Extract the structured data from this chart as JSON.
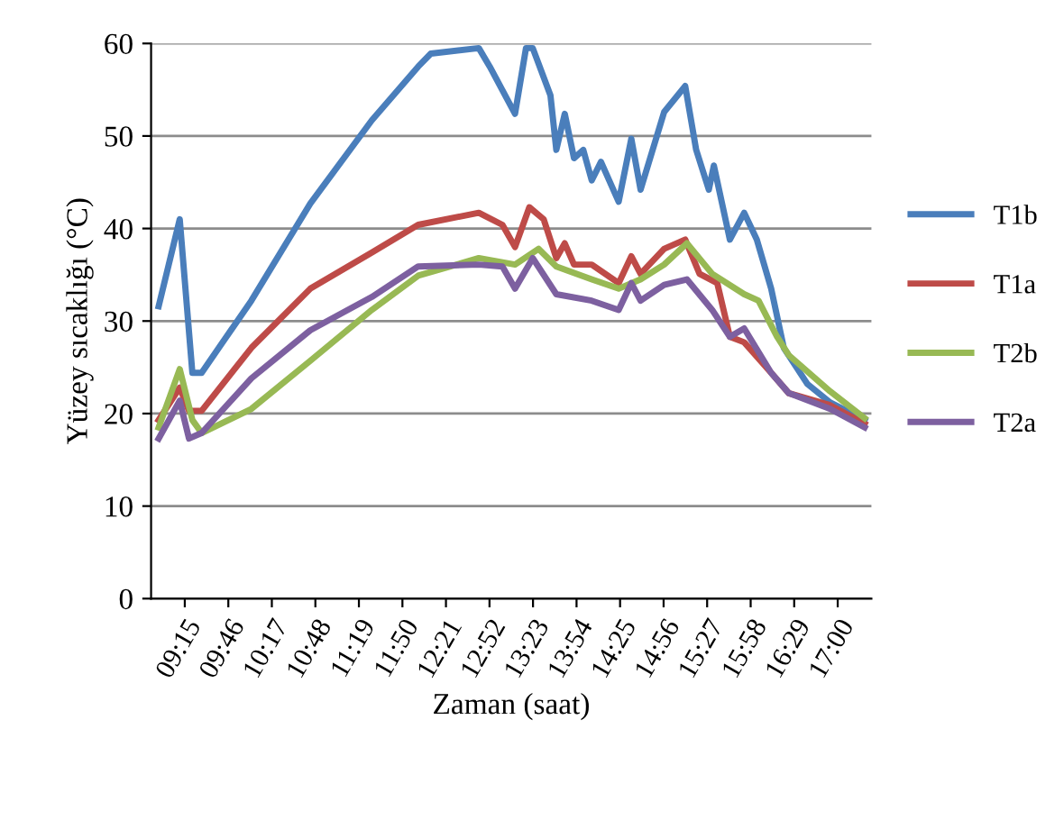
{
  "chart_data": {
    "type": "line",
    "xlabel": "Zaman (saat)",
    "ylabel": "Yüzey sıcaklığı (°C)",
    "xlim": [
      8.85,
      17.4
    ],
    "ylim": [
      0,
      60
    ],
    "yticks": [
      0,
      10,
      20,
      30,
      40,
      50,
      60
    ],
    "xticks": [
      {
        "value": 9.25,
        "label": "09:15"
      },
      {
        "value": 9.7667,
        "label": "09:46"
      },
      {
        "value": 10.2833,
        "label": "10:17"
      },
      {
        "value": 10.8,
        "label": "10:48"
      },
      {
        "value": 11.3167,
        "label": "11:19"
      },
      {
        "value": 11.8333,
        "label": "11:50"
      },
      {
        "value": 12.35,
        "label": "12:21"
      },
      {
        "value": 12.8667,
        "label": "12:52"
      },
      {
        "value": 13.3833,
        "label": "13:23"
      },
      {
        "value": 13.9,
        "label": "13:54"
      },
      {
        "value": 14.4167,
        "label": "14:25"
      },
      {
        "value": 14.9333,
        "label": "14:56"
      },
      {
        "value": 15.45,
        "label": "15:27"
      },
      {
        "value": 15.9667,
        "label": "15:58"
      },
      {
        "value": 16.4833,
        "label": "16:29"
      },
      {
        "value": 17,
        "label": "17:00"
      }
    ],
    "grid": "y",
    "legend": "right",
    "marker": "none",
    "line_style": "solid",
    "series": [
      {
        "name": "T1b",
        "color": "#4a7ebb",
        "x": [
          8.94,
          9.19,
          9.34,
          9.45,
          10.04,
          10.74,
          11.47,
          12.02,
          12.17,
          12.74,
          12.87,
          13.17,
          13.3,
          13.38,
          13.59,
          13.66,
          13.76,
          13.87,
          13.98,
          14.08,
          14.19,
          14.4,
          14.55,
          14.66,
          14.94,
          15.19,
          15.32,
          15.47,
          15.53,
          15.72,
          15.89,
          16.04,
          16.21,
          16.36,
          16.64,
          16.91,
          17.32
        ],
        "values": [
          31.6,
          41,
          24.4,
          24.4,
          32.2,
          42.7,
          51.7,
          57.5,
          58.9,
          59.5,
          57.5,
          52.4,
          59.5,
          59.5,
          54.4,
          48.5,
          52.4,
          47.6,
          48.5,
          45.2,
          47.2,
          42.9,
          49.7,
          44.2,
          52.6,
          55.4,
          48.5,
          44.2,
          46.8,
          38.8,
          41.7,
          38.8,
          33.5,
          27.1,
          23.2,
          21.2,
          19.3
        ]
      },
      {
        "name": "T1a",
        "color": "#be4b48",
        "x": [
          8.94,
          9.19,
          9.3,
          9.45,
          10.04,
          10.74,
          11.47,
          12.02,
          12.74,
          13.02,
          13.17,
          13.34,
          13.51,
          13.66,
          13.76,
          13.87,
          14.08,
          14.4,
          14.55,
          14.66,
          14.94,
          15.19,
          15.36,
          15.57,
          15.72,
          15.89,
          16.21,
          16.42,
          16.91,
          17.32
        ],
        "values": [
          19.3,
          22.8,
          20.3,
          20.3,
          27.1,
          33.5,
          37.4,
          40.4,
          41.7,
          40.4,
          38,
          42.3,
          41,
          36.8,
          38.4,
          36.1,
          36.1,
          34.1,
          37,
          35.1,
          37.8,
          38.8,
          35.1,
          34.1,
          28.3,
          27.7,
          24.4,
          22.2,
          20.9,
          18.9
        ]
      },
      {
        "name": "T2b",
        "color": "#98b954",
        "x": [
          8.94,
          9.19,
          9.34,
          9.45,
          10.04,
          10.74,
          11.47,
          12.02,
          12.74,
          13.17,
          13.45,
          13.66,
          14.08,
          14.4,
          14.66,
          14.94,
          15.21,
          15.51,
          15.89,
          16.06,
          16.28,
          16.42,
          16.91,
          17.32
        ],
        "values": [
          18.5,
          24.8,
          19.3,
          17.9,
          20.5,
          25.7,
          31.2,
          34.9,
          36.8,
          36.1,
          37.8,
          35.9,
          34.5,
          33.5,
          34.5,
          36.1,
          38.4,
          35.1,
          32.9,
          32.2,
          28.3,
          26.3,
          22.4,
          19.5
        ]
      },
      {
        "name": "T2a",
        "color": "#7d60a0",
        "x": [
          8.94,
          9.19,
          9.3,
          9.45,
          10.04,
          10.74,
          11.47,
          12.02,
          12.74,
          13.02,
          13.17,
          13.38,
          13.66,
          14.08,
          14.4,
          14.55,
          14.66,
          14.94,
          15.21,
          15.51,
          15.72,
          15.89,
          16.21,
          16.42,
          16.91,
          17.32
        ],
        "values": [
          17.3,
          21.4,
          17.3,
          17.9,
          23.8,
          29,
          32.6,
          35.9,
          36.1,
          35.9,
          33.5,
          36.8,
          32.9,
          32.2,
          31.2,
          34.1,
          32.2,
          33.9,
          34.5,
          31.2,
          28.3,
          29.2,
          24.4,
          22.2,
          20.5,
          18.5
        ]
      }
    ]
  }
}
